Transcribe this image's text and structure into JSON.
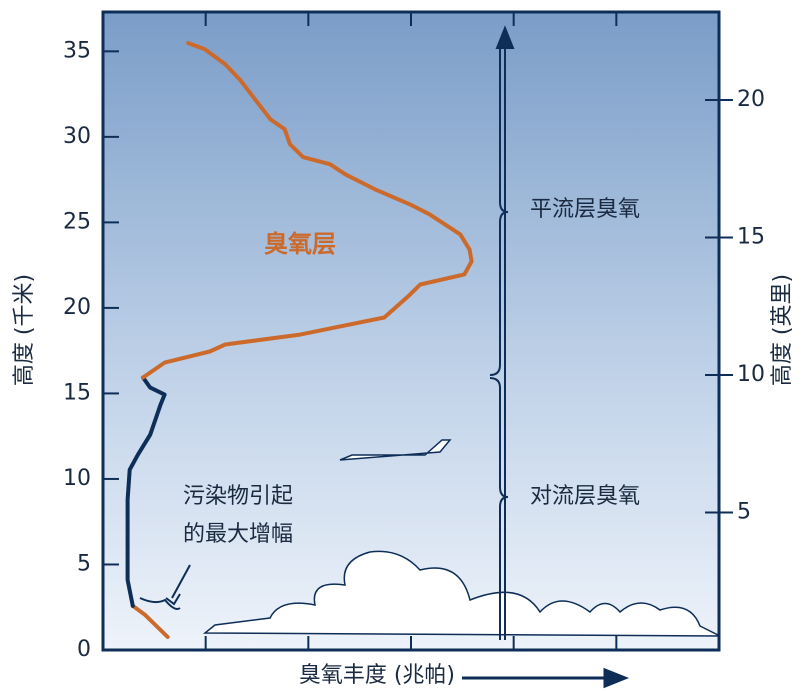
{
  "chart_data": {
    "type": "line",
    "xlabel": "臭氧丰度 (兆帕)",
    "ylabel": "高度 (千米)",
    "y2label": "高度 (英里)",
    "annotations": [
      "臭氧层",
      "污染物引起",
      "的最大增幅",
      "平流层臭氧",
      "对流层臭氧"
    ],
    "xlim": [
      0,
      6
    ],
    "xticks": [
      1,
      2,
      3,
      4,
      5
    ],
    "ylim": [
      0,
      37.3
    ],
    "yticks": [
      0,
      5,
      10,
      15,
      20,
      25,
      30,
      35
    ],
    "y2lim": [
      0,
      23.2
    ],
    "y2ticks": [
      5,
      10,
      15,
      20
    ],
    "series": [
      {
        "color": "#cc6a2c",
        "x": [
          0.63,
          0.51,
          0.41,
          0.29
        ],
        "values": [
          0.76,
          1.46,
          2.05,
          2.58
        ]
      },
      {
        "color": "#0e2e57",
        "x": [
          0.29,
          0.24,
          0.24,
          0.24,
          0.26,
          0.34,
          0.46,
          0.51,
          0.56,
          0.6,
          0.46,
          0.39
        ],
        "values": [
          2.58,
          4.1,
          6.44,
          8.78,
          10.54,
          11.42,
          12.59,
          13.47,
          14.34,
          14.93,
          15.34,
          15.93
        ]
      },
      {
        "color": "#cc6a2c",
        "x": [
          0.39,
          0.6,
          1.04,
          1.19,
          1.92,
          2.74,
          2.99,
          3.09,
          3.52,
          3.59,
          3.57,
          3.48,
          3.18,
          2.99,
          2.65,
          2.36,
          2.21,
          1.95,
          1.82,
          1.77,
          1.63,
          1.48,
          1.33,
          1.19,
          0.99,
          0.83
        ],
        "values": [
          15.93,
          16.8,
          17.45,
          17.86,
          18.44,
          19.44,
          20.78,
          21.37,
          21.96,
          22.72,
          23.42,
          24.3,
          25.47,
          26.05,
          26.93,
          27.81,
          28.4,
          28.81,
          29.57,
          30.44,
          31.03,
          32.2,
          33.37,
          34.25,
          35.13,
          35.48
        ]
      }
    ]
  }
}
